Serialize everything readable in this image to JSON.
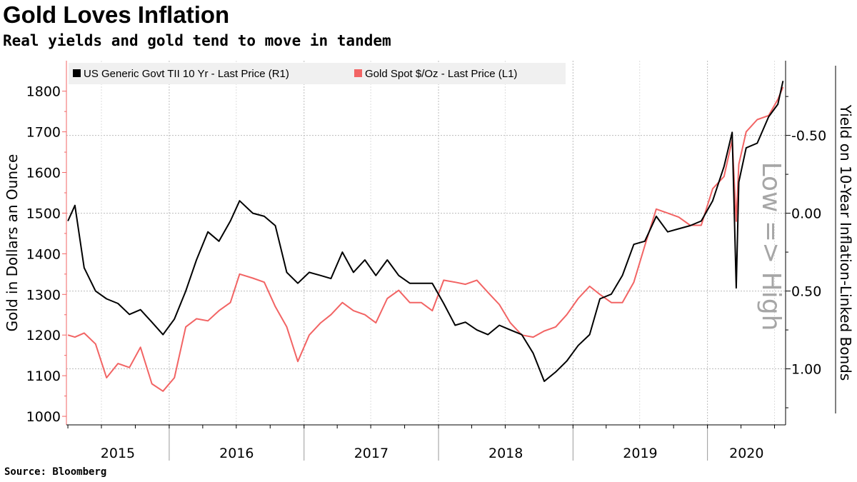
{
  "title": "Gold Loves Inflation",
  "subtitle": "Real yields and gold tend to move in tandem",
  "source": "Source: Bloomberg",
  "colors": {
    "gold": "#f26464",
    "tii": "#000000",
    "grid": "#bbbbbb",
    "annotation": "#a6a6a6",
    "legend_bg": "#f0f0f0"
  },
  "chart_data": {
    "type": "line",
    "title": "Gold Loves Inflation",
    "subtitle": "Real yields and gold tend to move in tandem",
    "xlabel": "",
    "ylabel_left": "Gold in Dollars an Ounce",
    "ylabel_right": "Yield on 10-Year Inflation-Linked Bonds",
    "annotation": "Low => High",
    "legend_placement": "top-left",
    "grid": true,
    "x_ticks": [
      "2015",
      "2016",
      "2017",
      "2018",
      "2019",
      "2020"
    ],
    "y_left": {
      "ticks": [
        1000,
        1100,
        1200,
        1300,
        1400,
        1500,
        1600,
        1700,
        1800
      ],
      "range": [
        979,
        1875
      ]
    },
    "y_right": {
      "ticks": [
        "-0.50",
        "0.00",
        "0.50",
        "1.00"
      ],
      "tick_values": [
        -0.5,
        0,
        0.5,
        1.0
      ],
      "range": [
        -0.98,
        1.36
      ],
      "inverted": true
    },
    "x_range": [
      "2015-03-28",
      "2020-07-31"
    ],
    "series": [
      {
        "name": "US Generic Govt TII 10 Yr - Last Price (R1)",
        "axis": "right",
        "color": "#000000",
        "x": [
          "2015-04-01",
          "2015-04-20",
          "2015-05-15",
          "2015-06-15",
          "2015-07-15",
          "2015-08-15",
          "2015-09-15",
          "2015-10-15",
          "2015-11-15",
          "2015-12-15",
          "2016-01-15",
          "2016-02-15",
          "2016-03-15",
          "2016-04-15",
          "2016-05-15",
          "2016-06-15",
          "2016-07-10",
          "2016-08-15",
          "2016-09-15",
          "2016-10-15",
          "2016-11-15",
          "2016-12-15",
          "2017-01-15",
          "2017-02-15",
          "2017-03-15",
          "2017-04-15",
          "2017-05-15",
          "2017-06-15",
          "2017-07-15",
          "2017-08-15",
          "2017-09-15",
          "2017-10-15",
          "2017-11-15",
          "2017-12-15",
          "2018-01-15",
          "2018-02-15",
          "2018-03-15",
          "2018-04-15",
          "2018-05-15",
          "2018-06-15",
          "2018-07-15",
          "2018-08-15",
          "2018-09-15",
          "2018-10-15",
          "2018-11-15",
          "2018-12-15",
          "2019-01-15",
          "2019-02-15",
          "2019-03-15",
          "2019-04-15",
          "2019-05-15",
          "2019-06-15",
          "2019-07-15",
          "2019-08-15",
          "2019-09-15",
          "2019-10-15",
          "2019-11-15",
          "2019-12-15",
          "2020-01-15",
          "2020-02-15",
          "2020-03-08",
          "2020-03-19",
          "2020-03-26",
          "2020-04-15",
          "2020-05-15",
          "2020-06-15",
          "2020-07-10",
          "2020-07-24"
        ],
        "values": [
          0.05,
          -0.05,
          0.35,
          0.5,
          0.55,
          0.58,
          0.65,
          0.62,
          0.7,
          0.78,
          0.68,
          0.5,
          0.3,
          0.12,
          0.18,
          0.05,
          -0.08,
          0.0,
          0.02,
          0.08,
          0.38,
          0.45,
          0.38,
          0.4,
          0.42,
          0.25,
          0.38,
          0.3,
          0.4,
          0.3,
          0.4,
          0.45,
          0.45,
          0.45,
          0.58,
          0.72,
          0.7,
          0.75,
          0.78,
          0.72,
          0.75,
          0.78,
          0.9,
          1.08,
          1.02,
          0.95,
          0.85,
          0.78,
          0.55,
          0.52,
          0.4,
          0.2,
          0.18,
          0.02,
          0.12,
          0.1,
          0.08,
          0.05,
          -0.08,
          -0.3,
          -0.52,
          0.48,
          -0.2,
          -0.42,
          -0.45,
          -0.62,
          -0.7,
          -0.85
        ]
      },
      {
        "name": "Gold Spot $/Oz - Last Price (L1)",
        "axis": "left",
        "color": "#f26464",
        "x": [
          "2015-04-01",
          "2015-04-20",
          "2015-05-15",
          "2015-06-15",
          "2015-07-15",
          "2015-08-15",
          "2015-09-15",
          "2015-10-15",
          "2015-11-15",
          "2015-12-15",
          "2016-01-15",
          "2016-02-15",
          "2016-03-15",
          "2016-04-15",
          "2016-05-15",
          "2016-06-15",
          "2016-07-10",
          "2016-08-15",
          "2016-09-15",
          "2016-10-15",
          "2016-11-15",
          "2016-12-15",
          "2017-01-15",
          "2017-02-15",
          "2017-03-15",
          "2017-04-15",
          "2017-05-15",
          "2017-06-15",
          "2017-07-15",
          "2017-08-15",
          "2017-09-15",
          "2017-10-15",
          "2017-11-15",
          "2017-12-15",
          "2018-01-15",
          "2018-02-15",
          "2018-03-15",
          "2018-04-15",
          "2018-05-15",
          "2018-06-15",
          "2018-07-15",
          "2018-08-15",
          "2018-09-15",
          "2018-10-15",
          "2018-11-15",
          "2018-12-15",
          "2019-01-15",
          "2019-02-15",
          "2019-03-15",
          "2019-04-15",
          "2019-05-15",
          "2019-06-15",
          "2019-07-15",
          "2019-08-15",
          "2019-09-15",
          "2019-10-15",
          "2019-11-15",
          "2019-12-15",
          "2020-01-15",
          "2020-02-15",
          "2020-03-08",
          "2020-03-19",
          "2020-03-26",
          "2020-04-15",
          "2020-05-15",
          "2020-06-15",
          "2020-07-10",
          "2020-07-24"
        ],
        "values": [
          1200,
          1195,
          1205,
          1178,
          1095,
          1130,
          1120,
          1170,
          1080,
          1062,
          1095,
          1220,
          1240,
          1235,
          1260,
          1280,
          1350,
          1340,
          1330,
          1270,
          1220,
          1135,
          1200,
          1230,
          1250,
          1280,
          1260,
          1250,
          1230,
          1290,
          1310,
          1280,
          1280,
          1260,
          1335,
          1330,
          1325,
          1335,
          1305,
          1275,
          1230,
          1200,
          1195,
          1210,
          1220,
          1250,
          1290,
          1320,
          1300,
          1280,
          1280,
          1330,
          1420,
          1510,
          1500,
          1490,
          1470,
          1470,
          1560,
          1590,
          1680,
          1480,
          1620,
          1700,
          1730,
          1740,
          1780,
          1810
        ]
      }
    ]
  }
}
